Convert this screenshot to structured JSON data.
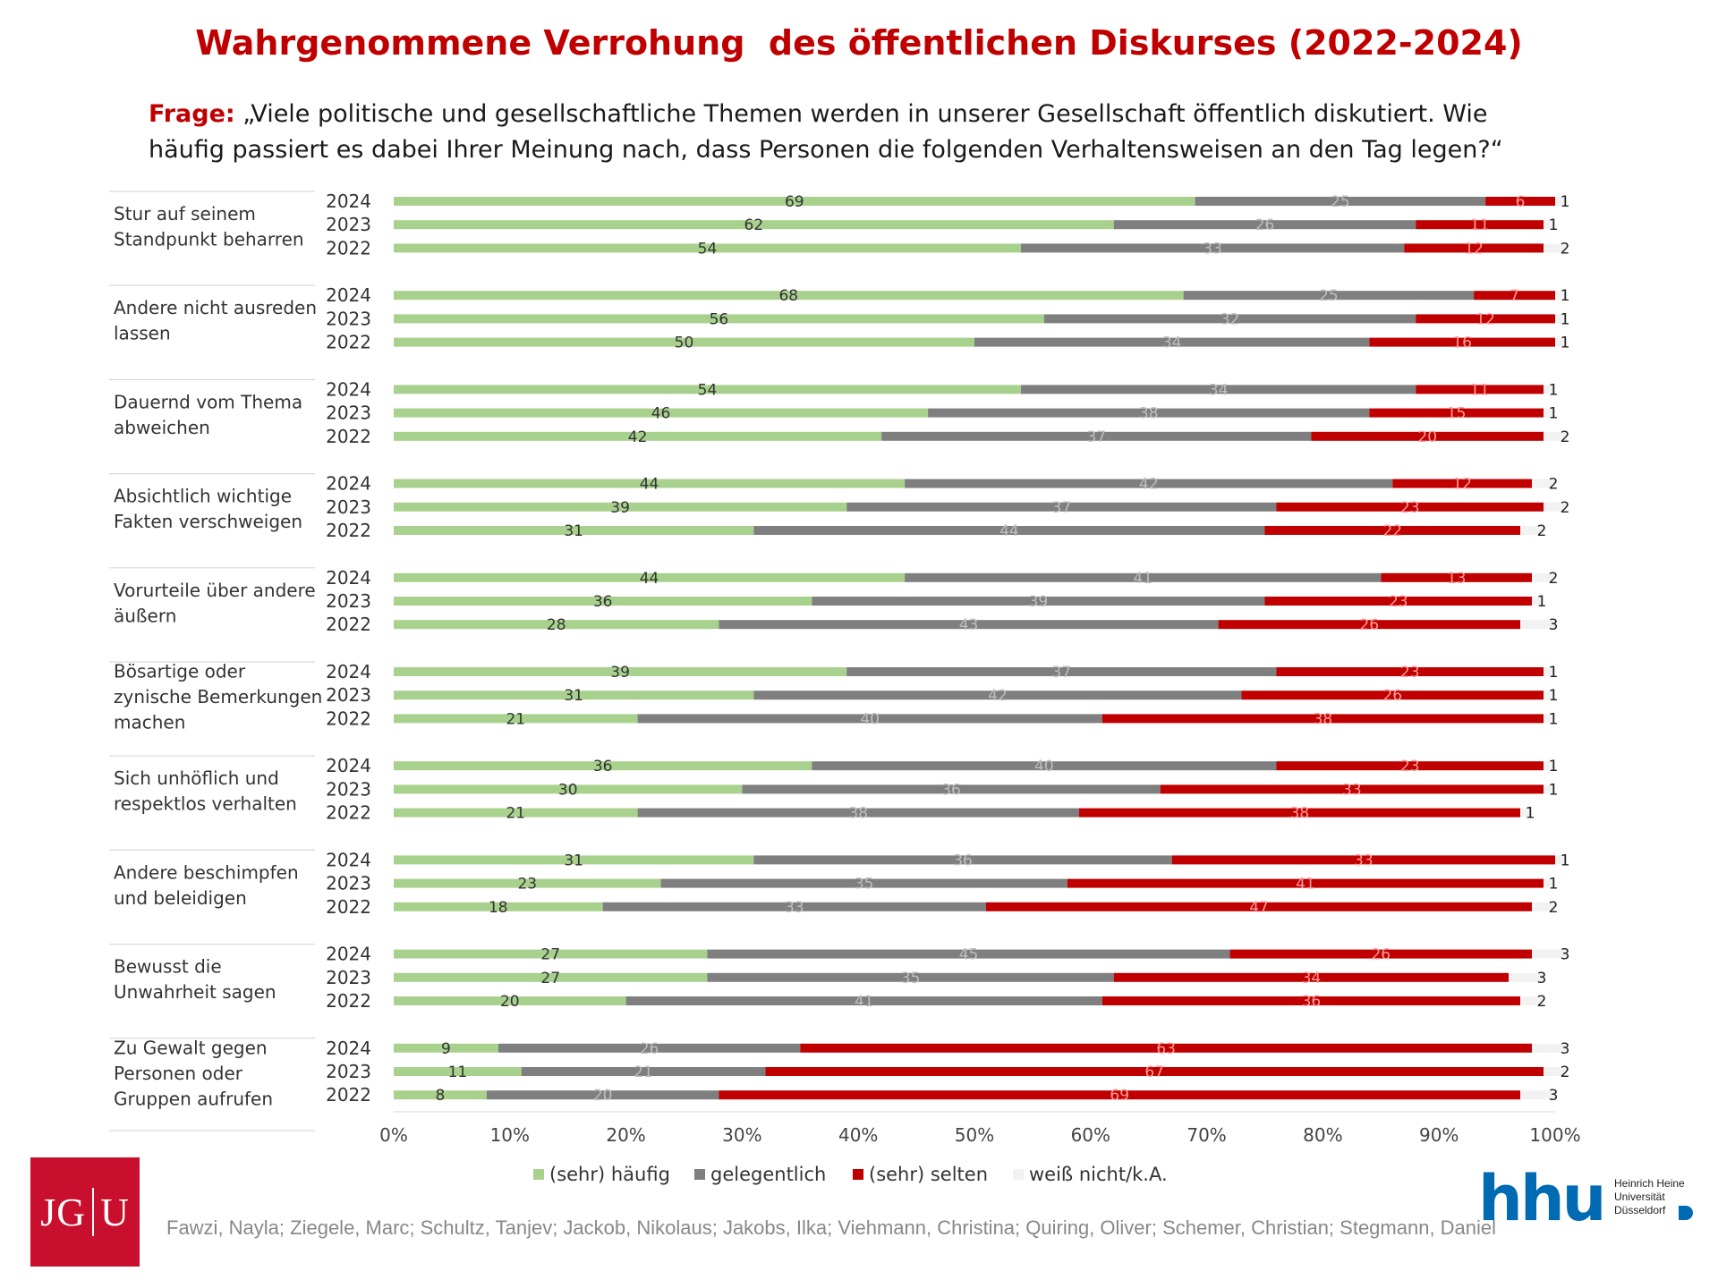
{
  "title": "Wahrgenommene Verrohung  des öffentlichen Diskurses (2022-2024)",
  "question": {
    "label": "Frage:",
    "line1": " „Viele politische und gesellschaftliche Themen werden in unserer Gesellschaft öffentlich diskutiert. Wie",
    "line2": "häufig passiert es dabei Ihrer Meinung nach, dass Personen die folgenden Verhaltensweisen an den Tag legen?“"
  },
  "chart_data": {
    "type": "bar",
    "orientation": "horizontal",
    "stacked": true,
    "xlim": [
      0,
      100
    ],
    "xticks": [
      "0%",
      "10%",
      "20%",
      "30%",
      "40%",
      "50%",
      "60%",
      "70%",
      "80%",
      "90%",
      "100%"
    ],
    "legend_position": "bottom",
    "series": [
      {
        "name": "(sehr) häufig",
        "color": "#a9d18e"
      },
      {
        "name": "gelegentlich",
        "color": "#7f7f7f"
      },
      {
        "name": "(sehr) selten",
        "color": "#c00000"
      },
      {
        "name": "weiß nicht/k.A.",
        "color": "#f2f2f2"
      }
    ],
    "groups": [
      {
        "label": [
          "Stur auf seinem",
          "Standpunkt beharren"
        ],
        "rows": [
          {
            "year": "2024",
            "values": [
              69,
              25,
              6,
              1
            ]
          },
          {
            "year": "2023",
            "values": [
              62,
              26,
              11,
              1
            ]
          },
          {
            "year": "2022",
            "values": [
              54,
              33,
              12,
              2
            ]
          }
        ]
      },
      {
        "label": [
          "Andere nicht ausreden",
          "lassen"
        ],
        "rows": [
          {
            "year": "2024",
            "values": [
              68,
              25,
              7,
              1
            ]
          },
          {
            "year": "2023",
            "values": [
              56,
              32,
              12,
              1
            ]
          },
          {
            "year": "2022",
            "values": [
              50,
              34,
              16,
              1
            ]
          }
        ]
      },
      {
        "label": [
          "Dauernd vom Thema",
          "abweichen"
        ],
        "rows": [
          {
            "year": "2024",
            "values": [
              54,
              34,
              11,
              1
            ]
          },
          {
            "year": "2023",
            "values": [
              46,
              38,
              15,
              1
            ]
          },
          {
            "year": "2022",
            "values": [
              42,
              37,
              20,
              2
            ]
          }
        ]
      },
      {
        "label": [
          "Absichtlich wichtige",
          "Fakten verschweigen"
        ],
        "rows": [
          {
            "year": "2024",
            "values": [
              44,
              42,
              12,
              2
            ]
          },
          {
            "year": "2023",
            "values": [
              39,
              37,
              23,
              2
            ]
          },
          {
            "year": "2022",
            "values": [
              31,
              44,
              22,
              2
            ]
          }
        ]
      },
      {
        "label": [
          "Vorurteile über andere",
          "äußern"
        ],
        "rows": [
          {
            "year": "2024",
            "values": [
              44,
              41,
              13,
              2
            ]
          },
          {
            "year": "2023",
            "values": [
              36,
              39,
              23,
              1
            ]
          },
          {
            "year": "2022",
            "values": [
              28,
              43,
              26,
              3
            ]
          }
        ]
      },
      {
        "label": [
          "Bösartige oder",
          "zynische Bemerkungen",
          "machen"
        ],
        "rows": [
          {
            "year": "2024",
            "values": [
              39,
              37,
              23,
              1
            ]
          },
          {
            "year": "2023",
            "values": [
              31,
              42,
              26,
              1
            ]
          },
          {
            "year": "2022",
            "values": [
              21,
              40,
              38,
              1
            ]
          }
        ]
      },
      {
        "label": [
          "Sich unhöflich und",
          "respektlos verhalten"
        ],
        "rows": [
          {
            "year": "2024",
            "values": [
              36,
              40,
              23,
              1
            ]
          },
          {
            "year": "2023",
            "values": [
              30,
              36,
              33,
              1
            ]
          },
          {
            "year": "2022",
            "values": [
              21,
              38,
              38,
              1
            ]
          }
        ]
      },
      {
        "label": [
          "Andere beschimpfen",
          "und beleidigen"
        ],
        "rows": [
          {
            "year": "2024",
            "values": [
              31,
              36,
              33,
              1
            ]
          },
          {
            "year": "2023",
            "values": [
              23,
              35,
              41,
              1
            ]
          },
          {
            "year": "2022",
            "values": [
              18,
              33,
              47,
              2
            ]
          }
        ]
      },
      {
        "label": [
          "Bewusst die",
          "Unwahrheit sagen"
        ],
        "rows": [
          {
            "year": "2024",
            "values": [
              27,
              45,
              26,
              3
            ]
          },
          {
            "year": "2023",
            "values": [
              27,
              35,
              34,
              3
            ]
          },
          {
            "year": "2022",
            "values": [
              20,
              41,
              36,
              2
            ]
          }
        ]
      },
      {
        "label": [
          "Zu Gewalt gegen",
          "Personen oder",
          "Gruppen aufrufen"
        ],
        "rows": [
          {
            "year": "2024",
            "values": [
              9,
              26,
              63,
              3
            ]
          },
          {
            "year": "2023",
            "values": [
              11,
              21,
              67,
              2
            ]
          },
          {
            "year": "2022",
            "values": [
              8,
              20,
              69,
              3
            ]
          }
        ]
      }
    ]
  },
  "logos": {
    "jgu_text": [
      "JG",
      "U"
    ],
    "hhu_word": "hhu",
    "hhu_name": [
      "Heinrich Heine",
      "Universität",
      "Düsseldorf"
    ]
  },
  "credits": "Fawzi, Nayla; Ziegele, Marc; Schultz, Tanjev; Jackob, Nikolaus; Jakobs, Ilka; Viehmann, Christina; Quiring, Oliver; Schemer, Christian; Stegmann, Daniel"
}
